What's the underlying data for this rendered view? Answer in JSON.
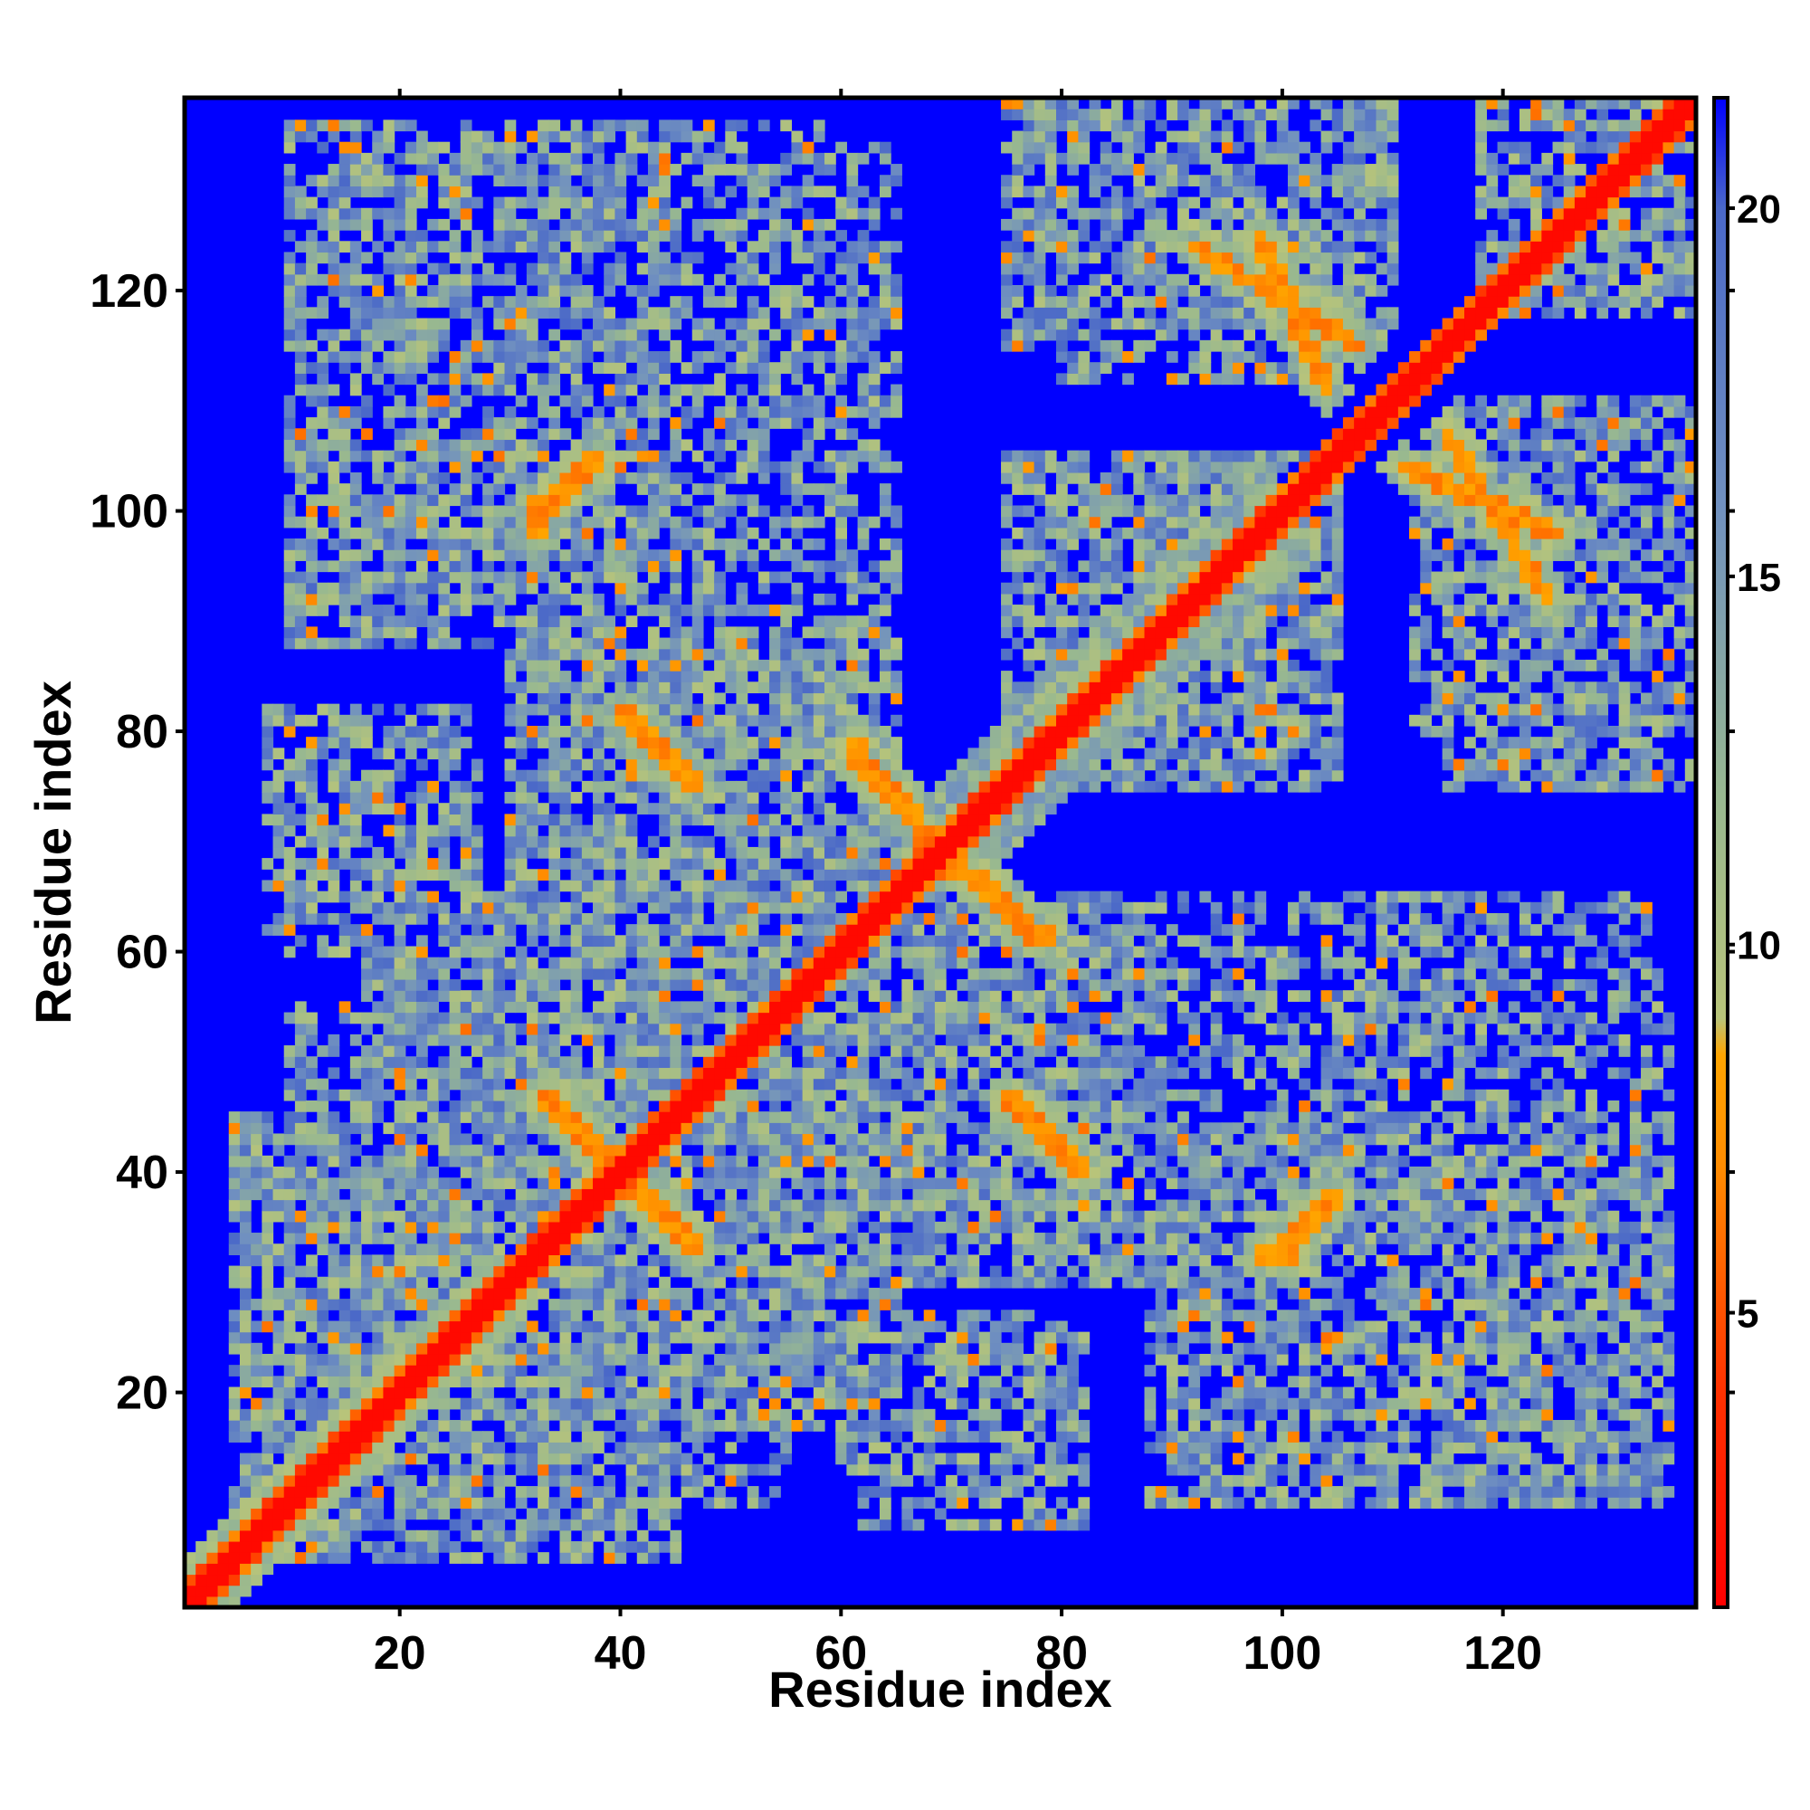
{
  "chart_data": {
    "type": "heatmap",
    "title": "",
    "xlabel": "Residue index",
    "ylabel": "Residue index",
    "n_residues": 137,
    "xlim": [
      1,
      137
    ],
    "ylim": [
      1,
      137
    ],
    "x_ticks": [
      "20",
      "40",
      "60",
      "80",
      "100",
      "120"
    ],
    "y_ticks": [
      "20",
      "40",
      "60",
      "80",
      "100",
      "120"
    ],
    "colorbar": {
      "range": [
        1,
        21.5
      ],
      "ticks": [
        "5",
        "10",
        "15",
        "20"
      ],
      "stops": [
        {
          "value": 1,
          "color": "#ff0000"
        },
        {
          "value": 4,
          "color": "#ff3300"
        },
        {
          "value": 7,
          "color": "#ff8c00"
        },
        {
          "value": 8.5,
          "color": "#ffa500"
        },
        {
          "value": 9,
          "color": "#b8c47a"
        },
        {
          "value": 12,
          "color": "#98b890"
        },
        {
          "value": 16,
          "color": "#7090c0"
        },
        {
          "value": 20,
          "color": "#4a68c8"
        },
        {
          "value": 21.5,
          "color": "#0000ff"
        }
      ]
    },
    "background_color": "#0000ff",
    "structure": {
      "diagonal": [
        {
          "i": 1,
          "j": 1
        },
        {
          "i": 137,
          "j": 137
        }
      ],
      "strand_pairs": [
        {
          "name": "anti-1",
          "i0": 92,
          "j0": 124,
          "i1": 107,
          "j1": 115
        },
        {
          "name": "anti-2",
          "i0": 111,
          "j0": 104,
          "i1": 125,
          "j1": 98
        },
        {
          "name": "anti-3",
          "i0": 40,
          "j0": 82,
          "i1": 47,
          "j1": 75
        },
        {
          "name": "anti-4",
          "i0": 61,
          "j0": 78,
          "i1": 68,
          "j1": 70
        },
        {
          "name": "anti-5",
          "i0": 72,
          "j0": 67,
          "i1": 79,
          "j1": 61
        },
        {
          "name": "anti-6",
          "i0": 75,
          "j0": 47,
          "i1": 82,
          "j1": 40
        },
        {
          "name": "anti-7",
          "i0": 32,
          "j0": 98,
          "i1": 37,
          "j1": 104
        },
        {
          "name": "anti-8",
          "i0": 100,
          "j0": 32,
          "i1": 105,
          "j1": 38
        },
        {
          "name": "anti-9",
          "i0": 33,
          "j0": 47,
          "i1": 40,
          "j1": 40
        },
        {
          "name": "anti-10",
          "i0": 40,
          "j0": 40,
          "i1": 47,
          "j1": 33
        }
      ],
      "contact_regions": [
        {
          "x0": 10,
          "x1": 45,
          "y0": 88,
          "y1": 135,
          "density": 0.75
        },
        {
          "x0": 40,
          "x1": 65,
          "y0": 90,
          "y1": 133,
          "density": 0.6
        },
        {
          "x0": 35,
          "x1": 65,
          "y0": 70,
          "y1": 105,
          "density": 0.8
        },
        {
          "x0": 8,
          "x1": 26,
          "y0": 62,
          "y1": 82,
          "density": 0.65
        },
        {
          "x0": 80,
          "x1": 105,
          "y0": 112,
          "y1": 137,
          "density": 0.7
        },
        {
          "x0": 75,
          "x1": 105,
          "y0": 75,
          "y1": 105,
          "density": 0.8
        },
        {
          "x0": 115,
          "x1": 137,
          "y0": 75,
          "y1": 110,
          "density": 0.75
        },
        {
          "x0": 120,
          "x1": 137,
          "y0": 118,
          "y1": 137,
          "density": 0.7
        },
        {
          "x0": 17,
          "x1": 75,
          "y0": 30,
          "y1": 65,
          "density": 0.85
        },
        {
          "x0": 8,
          "x1": 45,
          "y0": 5,
          "y1": 35,
          "density": 0.8
        },
        {
          "x0": 35,
          "x1": 55,
          "y0": 10,
          "y1": 35,
          "density": 0.6
        },
        {
          "x0": 60,
          "x1": 77,
          "y0": 10,
          "y1": 27,
          "density": 0.6
        },
        {
          "x0": 72,
          "x1": 100,
          "y0": 30,
          "y1": 65,
          "density": 0.8
        },
        {
          "x0": 95,
          "x1": 125,
          "y0": 20,
          "y1": 50,
          "density": 0.75
        },
        {
          "x0": 110,
          "x1": 135,
          "y0": 30,
          "y1": 58,
          "density": 0.6
        }
      ]
    }
  }
}
